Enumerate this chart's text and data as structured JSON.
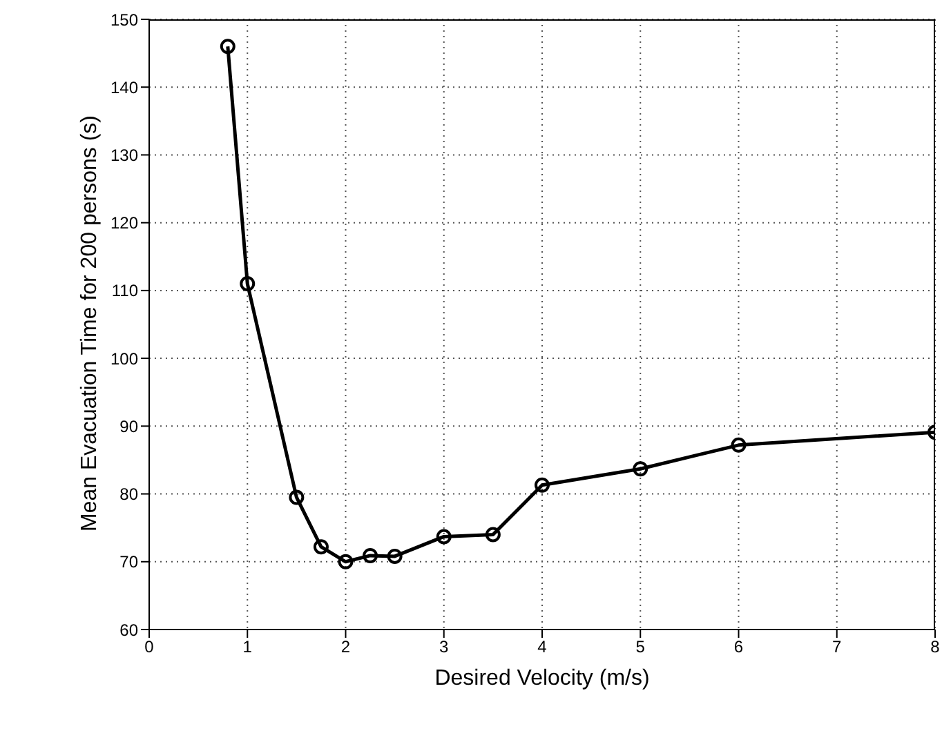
{
  "chart_data": {
    "type": "line",
    "xlabel": "Desired Velocity (m/s)",
    "ylabel": "Mean Evacuation Time for 200 persons (s)",
    "x": [
      0.8,
      1,
      1.5,
      1.75,
      2,
      2.25,
      2.5,
      3,
      3.5,
      4,
      5,
      6,
      8
    ],
    "series": [
      {
        "color": "#000000",
        "values": [
          146,
          111,
          79.5,
          72.2,
          70,
          70.9,
          70.8,
          73.7,
          74,
          81.3,
          83.7,
          87.2,
          89.1
        ]
      }
    ],
    "xlim": [
      0,
      8
    ],
    "xticks": [
      0,
      1,
      2,
      3,
      4,
      5,
      6,
      7,
      8
    ],
    "ylim": [
      60,
      150
    ],
    "yticks": [
      60,
      70,
      80,
      90,
      100,
      110,
      120,
      130,
      140,
      150
    ],
    "grid": true,
    "marker": "circle",
    "line_style": "solid"
  }
}
